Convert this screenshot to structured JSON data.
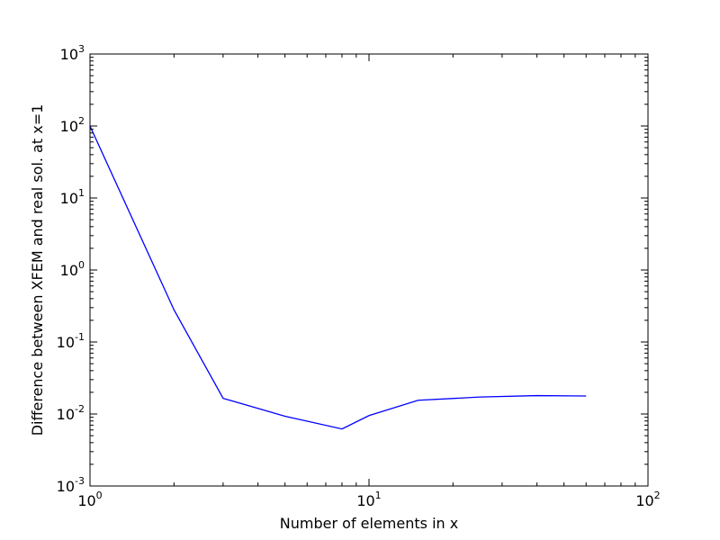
{
  "chart_data": {
    "type": "line",
    "xscale": "log",
    "yscale": "log",
    "xlim": [
      1,
      100
    ],
    "ylim": [
      0.001,
      1000
    ],
    "xlabel": "Number of elements in x",
    "ylabel": "Difference between XFEM and real sol. at x=1",
    "x_ticks": [
      {
        "value": 1,
        "base": "10",
        "exp": "0"
      },
      {
        "value": 10,
        "base": "10",
        "exp": "1"
      },
      {
        "value": 100,
        "base": "10",
        "exp": "2"
      }
    ],
    "y_ticks": [
      {
        "value": 0.001,
        "base": "10",
        "exp": "-3"
      },
      {
        "value": 0.01,
        "base": "10",
        "exp": "-2"
      },
      {
        "value": 0.1,
        "base": "10",
        "exp": "-1"
      },
      {
        "value": 1,
        "base": "10",
        "exp": "0"
      },
      {
        "value": 10,
        "base": "10",
        "exp": "1"
      },
      {
        "value": 100,
        "base": "10",
        "exp": "2"
      },
      {
        "value": 1000,
        "base": "10",
        "exp": "3"
      }
    ],
    "grid": false,
    "series": [
      {
        "color": "#0000ff",
        "x": [
          1,
          2,
          3,
          5,
          8,
          10,
          15,
          25,
          40,
          60
        ],
        "y": [
          100,
          0.28,
          0.0165,
          0.0093,
          0.0062,
          0.0095,
          0.0155,
          0.0172,
          0.018,
          0.0178
        ]
      }
    ]
  }
}
